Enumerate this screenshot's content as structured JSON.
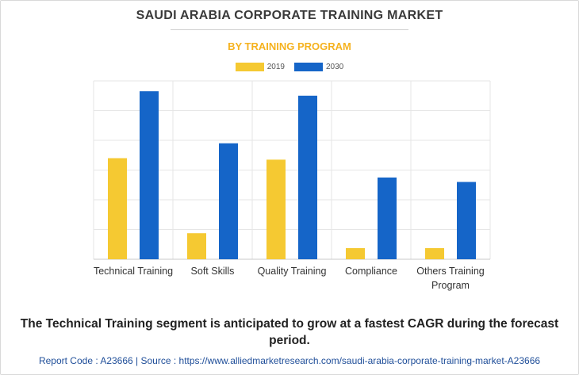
{
  "header": {
    "title": "SAUDI ARABIA CORPORATE TRAINING MARKET",
    "subtitle": "BY TRAINING PROGRAM"
  },
  "footer": {
    "note": "The Technical Training segment is anticipated to grow at a fastest CAGR during the forecast period.",
    "source": "Report Code : A23666  |  Source : https://www.alliedmarketresearch.com/saudi-arabia-corporate-training-market-A23666"
  },
  "chart_data": {
    "type": "bar",
    "title": "SAUDI ARABIA CORPORATE TRAINING MARKET",
    "subtitle": "BY TRAINING PROGRAM",
    "categories": [
      "Technical Training",
      "Soft Skills",
      "Quality Training",
      "Compliance",
      "Others Training Program"
    ],
    "series": [
      {
        "name": "2019",
        "color": "#f5c932",
        "values": [
          68,
          17.5,
          67,
          7.5,
          7.5
        ]
      },
      {
        "name": "2030",
        "color": "#1565c8",
        "values": [
          113,
          78,
          110,
          55,
          52
        ]
      }
    ],
    "ylim": [
      0,
      120
    ],
    "grid": true,
    "y_tick_labels": false,
    "legend_position": "top-center"
  }
}
